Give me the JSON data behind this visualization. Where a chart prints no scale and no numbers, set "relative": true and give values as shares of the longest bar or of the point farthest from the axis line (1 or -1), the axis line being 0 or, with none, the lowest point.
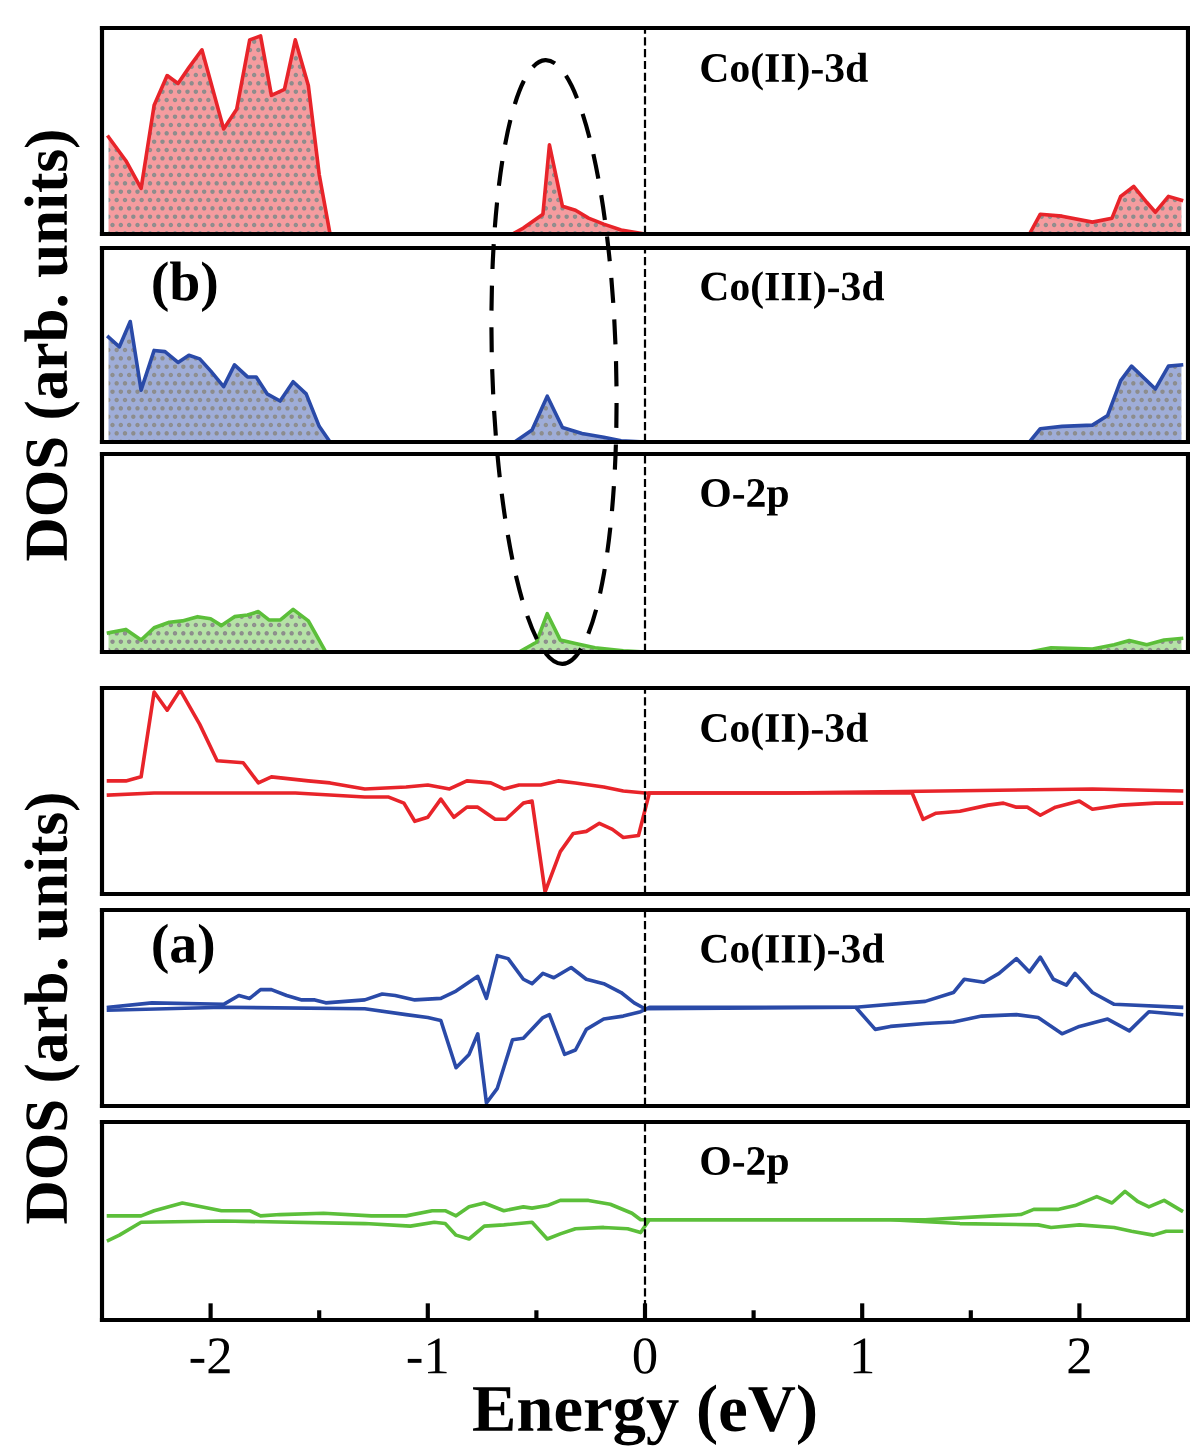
{
  "chart_data": [
    {
      "type": "area",
      "title": "Co(II)-3d",
      "relative": true,
      "xlim": [
        -2.5,
        2.5
      ],
      "tick_labels": false,
      "ref_lines": [
        {
          "axis": "x",
          "value": 0,
          "line_style": "dashed",
          "color": "#000000"
        }
      ],
      "series": [
        {
          "color": "#e8242a",
          "x": [
            -2.47,
            -2.39,
            -2.32,
            -2.26,
            -2.2,
            -2.15,
            -2.1,
            -2.04,
            -1.94,
            -1.88,
            -1.82,
            -1.77,
            -1.72,
            -1.66,
            -1.61,
            -1.55,
            -1.5,
            -1.45,
            -0.61,
            -0.56,
            -0.47,
            -0.44,
            -0.38,
            -0.32,
            -0.26,
            -0.19,
            -0.11,
            0,
            1.77,
            1.82,
            1.92,
            2.06,
            2.15,
            2.19,
            2.25,
            2.31,
            2.35,
            2.41,
            2.47
          ],
          "values": [
            0.49,
            0.37,
            0.23,
            0.65,
            0.8,
            0.76,
            0.84,
            0.93,
            0.53,
            0.63,
            0.98,
            1.0,
            0.7,
            0.73,
            0.98,
            0.75,
            0.3,
            0,
            0,
            0.03,
            0.1,
            0.45,
            0.14,
            0.12,
            0.08,
            0.05,
            0.02,
            0,
            0,
            0.1,
            0.09,
            0.06,
            0.08,
            0.19,
            0.24,
            0.16,
            0.11,
            0.19,
            0.17
          ]
        }
      ]
    },
    {
      "type": "area",
      "title": "Co(III)-3d",
      "ylabel": "DOS (arb. units)",
      "annotations": [
        "(b)"
      ],
      "relative": true,
      "xlim": [
        -2.5,
        2.5
      ],
      "tick_labels": false,
      "ref_lines": [
        {
          "axis": "x",
          "value": 0,
          "line_style": "dashed",
          "color": "#000000"
        }
      ],
      "series": [
        {
          "color": "#2a4aa8",
          "x": [
            -2.47,
            -2.42,
            -2.37,
            -2.32,
            -2.26,
            -2.21,
            -2.15,
            -2.1,
            -2.05,
            -2.0,
            -1.94,
            -1.89,
            -1.83,
            -1.79,
            -1.74,
            -1.68,
            -1.62,
            -1.56,
            -1.5,
            -1.45,
            -0.6,
            -0.52,
            -0.45,
            -0.38,
            -0.29,
            -0.19,
            -0.11,
            0,
            1.77,
            1.82,
            1.92,
            2.06,
            2.13,
            2.19,
            2.24,
            2.35,
            2.41,
            2.47
          ],
          "values": [
            0.87,
            0.79,
            1.0,
            0.43,
            0.76,
            0.75,
            0.66,
            0.72,
            0.69,
            0.59,
            0.46,
            0.64,
            0.54,
            0.54,
            0.4,
            0.34,
            0.5,
            0.4,
            0.13,
            0,
            0,
            0.1,
            0.38,
            0.12,
            0.07,
            0.04,
            0.01,
            0,
            0,
            0.11,
            0.13,
            0.14,
            0.22,
            0.51,
            0.63,
            0.44,
            0.63,
            0.64
          ]
        }
      ]
    },
    {
      "type": "area",
      "title": "O-2p",
      "relative": true,
      "xlim": [
        -2.5,
        2.5
      ],
      "tick_labels": false,
      "ref_lines": [
        {
          "axis": "x",
          "value": 0,
          "line_style": "dashed",
          "color": "#000000"
        }
      ],
      "series": [
        {
          "color": "#5cbf3a",
          "x": [
            -2.47,
            -2.39,
            -2.32,
            -2.26,
            -2.19,
            -2.13,
            -2.06,
            -2.0,
            -1.95,
            -1.89,
            -1.83,
            -1.78,
            -1.73,
            -1.68,
            -1.62,
            -1.55,
            -1.47,
            -0.58,
            -0.5,
            -0.45,
            -0.39,
            -0.32,
            -0.23,
            -0.1,
            0,
            1.77,
            1.87,
            2.06,
            2.16,
            2.23,
            2.31,
            2.39,
            2.47
          ],
          "values": [
            0.45,
            0.53,
            0.28,
            0.57,
            0.7,
            0.73,
            0.83,
            0.78,
            0.62,
            0.83,
            0.87,
            0.95,
            0.75,
            0.75,
            1.0,
            0.73,
            0,
            0,
            0.23,
            0.9,
            0.28,
            0.2,
            0.1,
            0.03,
            0,
            0,
            0.1,
            0.07,
            0.17,
            0.27,
            0.17,
            0.28,
            0.32
          ]
        }
      ]
    },
    {
      "type": "line",
      "title": "Co(II)-3d",
      "relative": true,
      "xlim": [
        -2.5,
        2.5
      ],
      "tick_labels": false,
      "ref_lines": [
        {
          "axis": "x",
          "value": 0,
          "line_style": "dashed",
          "color": "#000000"
        }
      ],
      "series": [
        {
          "color": "#e8242a",
          "x": [
            -2.47,
            -2.39,
            -2.32,
            -2.26,
            -2.2,
            -2.14,
            -2.05,
            -1.97,
            -1.85,
            -1.78,
            -1.72,
            -1.55,
            -1.45,
            -1.29,
            -1.1,
            -1.0,
            -0.9,
            -0.82,
            -0.71,
            -0.65,
            -0.58,
            -0.48,
            -0.4,
            -0.32,
            -0.19,
            -0.1,
            0,
            0.65,
            2.06,
            2.47
          ],
          "values": [
            0.55,
            0.55,
            0.57,
            0.99,
            0.9,
            1.0,
            0.83,
            0.65,
            0.64,
            0.54,
            0.57,
            0.55,
            0.54,
            0.51,
            0.52,
            0.53,
            0.51,
            0.55,
            0.54,
            0.51,
            0.53,
            0.53,
            0.55,
            0.54,
            0.52,
            0.5,
            0.49,
            0.49,
            0.51,
            0.5
          ]
        },
        {
          "color": "#e8242a",
          "x": [
            -2.47,
            -2.26,
            -1.61,
            -1.29,
            -1.18,
            -1.11,
            -1.06,
            -1.0,
            -0.94,
            -0.88,
            -0.82,
            -0.77,
            -0.69,
            -0.64,
            -0.56,
            -0.52,
            -0.46,
            -0.39,
            -0.33,
            -0.27,
            -0.21,
            -0.15,
            -0.1,
            -0.03,
            0.02,
            1.23,
            1.28,
            1.34,
            1.45,
            1.58,
            1.65,
            1.71,
            1.76,
            1.82,
            1.89,
            2.0,
            2.06,
            2.19,
            2.35,
            2.47
          ],
          "values": [
            0.48,
            0.49,
            0.49,
            0.47,
            0.47,
            0.44,
            0.35,
            0.37,
            0.46,
            0.37,
            0.42,
            0.42,
            0.36,
            0.36,
            0.44,
            0.45,
            0,
            0.2,
            0.29,
            0.3,
            0.34,
            0.31,
            0.27,
            0.28,
            0.49,
            0.49,
            0.36,
            0.39,
            0.4,
            0.43,
            0.44,
            0.42,
            0.42,
            0.38,
            0.42,
            0.45,
            0.41,
            0.43,
            0.44,
            0.44
          ]
        }
      ]
    },
    {
      "type": "line",
      "title": "Co(III)-3d",
      "ylabel": "DOS (arb. units)",
      "annotations": [
        "(a)"
      ],
      "relative": true,
      "xlim": [
        -2.5,
        2.5
      ],
      "tick_labels": false,
      "ref_lines": [
        {
          "axis": "x",
          "value": 0,
          "line_style": "dashed",
          "color": "#000000"
        }
      ],
      "series": [
        {
          "color": "#2a4aa8",
          "x": [
            -2.47,
            -2.27,
            -1.94,
            -1.87,
            -1.82,
            -1.77,
            -1.72,
            -1.65,
            -1.58,
            -1.52,
            -1.47,
            -1.29,
            -1.21,
            -1.15,
            -1.06,
            -0.94,
            -0.87,
            -0.77,
            -0.73,
            -0.68,
            -0.63,
            -0.56,
            -0.52,
            -0.47,
            -0.42,
            -0.34,
            -0.27,
            -0.19,
            -0.11,
            -0.05,
            0,
            0.97,
            1.29,
            1.42,
            1.47,
            1.56,
            1.63,
            1.71,
            1.77,
            1.82,
            1.88,
            1.94,
            1.98,
            2.06,
            2.16,
            2.47
          ],
          "values": [
            0.65,
            0.68,
            0.67,
            0.73,
            0.71,
            0.77,
            0.77,
            0.73,
            0.7,
            0.7,
            0.68,
            0.7,
            0.74,
            0.73,
            0.7,
            0.71,
            0.76,
            0.86,
            0.71,
            1.0,
            0.98,
            0.84,
            0.81,
            0.88,
            0.85,
            0.92,
            0.84,
            0.81,
            0.75,
            0.68,
            0.64,
            0.65,
            0.69,
            0.75,
            0.84,
            0.82,
            0.88,
            0.98,
            0.89,
            0.99,
            0.84,
            0.8,
            0.88,
            0.75,
            0.67,
            0.65
          ]
        },
        {
          "color": "#2a4aa8",
          "x": [
            -2.47,
            -1.94,
            -1.29,
            -1.1,
            -1.0,
            -0.94,
            -0.87,
            -0.81,
            -0.77,
            -0.73,
            -0.68,
            -0.61,
            -0.56,
            -0.47,
            -0.44,
            -0.37,
            -0.32,
            -0.27,
            -0.19,
            -0.1,
            -0.02,
            0.02,
            0.97,
            1.06,
            1.13,
            1.29,
            1.42,
            1.55,
            1.71,
            1.81,
            1.92,
            2.0,
            2.13,
            2.23,
            2.32,
            2.47
          ],
          "values": [
            0.63,
            0.65,
            0.64,
            0.6,
            0.58,
            0.56,
            0.24,
            0.33,
            0.47,
            0,
            0.1,
            0.43,
            0.44,
            0.58,
            0.6,
            0.33,
            0.36,
            0.5,
            0.57,
            0.59,
            0.62,
            0.65,
            0.65,
            0.5,
            0.52,
            0.54,
            0.55,
            0.59,
            0.6,
            0.58,
            0.47,
            0.52,
            0.57,
            0.49,
            0.62,
            0.6
          ]
        }
      ]
    },
    {
      "type": "line",
      "title": "O-2p",
      "xlabel": "Energy (eV)",
      "relative": true,
      "xlim": [
        -2.5,
        2.5
      ],
      "tick_labels": "x",
      "xticks": [
        -2,
        {
          "value": -1.5,
          "label": null
        },
        -1,
        {
          "value": -0.5,
          "label": null
        },
        0,
        {
          "value": 0.5,
          "label": null
        },
        1,
        {
          "value": 1.5,
          "label": null
        },
        2
      ],
      "ref_lines": [
        {
          "axis": "x",
          "value": 0,
          "line_style": "dashed",
          "color": "#000000"
        }
      ],
      "series": [
        {
          "color": "#5cbf3a",
          "x": [
            -2.47,
            -2.32,
            -2.26,
            -2.13,
            -1.95,
            -1.82,
            -1.77,
            -1.68,
            -1.48,
            -1.26,
            -1.1,
            -0.98,
            -0.92,
            -0.87,
            -0.81,
            -0.74,
            -0.65,
            -0.56,
            -0.52,
            -0.45,
            -0.39,
            -0.26,
            -0.16,
            -0.06,
            -0.02,
            0.02,
            1.29,
            1.61,
            1.73,
            1.79,
            1.9,
            1.98,
            2.08,
            2.15,
            2.21,
            2.27,
            2.32,
            2.39,
            2.47
          ],
          "values": [
            0.81,
            0.81,
            0.85,
            0.91,
            0.85,
            0.85,
            0.81,
            0.82,
            0.83,
            0.81,
            0.81,
            0.85,
            0.85,
            0.81,
            0.88,
            0.91,
            0.85,
            0.88,
            0.87,
            0.89,
            0.93,
            0.93,
            0.9,
            0.83,
            0.78,
            0.78,
            0.78,
            0.81,
            0.82,
            0.86,
            0.86,
            0.89,
            0.96,
            0.91,
            1.0,
            0.92,
            0.88,
            0.93,
            0.85
          ]
        },
        {
          "color": "#5cbf3a",
          "x": [
            -2.47,
            -2.42,
            -2.32,
            -1.94,
            -1.29,
            -1.08,
            -0.97,
            -0.92,
            -0.87,
            -0.81,
            -0.74,
            -0.65,
            -0.52,
            -0.45,
            -0.39,
            -0.32,
            -0.19,
            -0.08,
            -0.02,
            0.02,
            1.13,
            1.45,
            1.81,
            1.87,
            2.0,
            2.16,
            2.24,
            2.34,
            2.4,
            2.47
          ],
          "values": [
            0.62,
            0.66,
            0.76,
            0.77,
            0.75,
            0.73,
            0.76,
            0.75,
            0.66,
            0.63,
            0.73,
            0.74,
            0.76,
            0.63,
            0.67,
            0.71,
            0.72,
            0.71,
            0.68,
            0.78,
            0.78,
            0.75,
            0.74,
            0.72,
            0.74,
            0.72,
            0.69,
            0.66,
            0.69,
            0.69
          ]
        }
      ]
    }
  ]
}
